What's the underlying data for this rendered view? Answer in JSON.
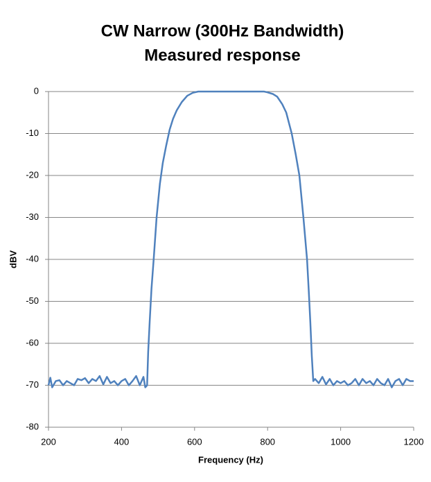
{
  "chart_data": {
    "type": "line",
    "title": "CW Narrow (300Hz Bandwidth)",
    "subtitle": "Measured response",
    "x_label": "Frequency (Hz)",
    "y_label": "dBV",
    "xlim": [
      200,
      1200
    ],
    "xticks": [
      200,
      400,
      600,
      800,
      1000,
      1200
    ],
    "ylim": [
      -80,
      0
    ],
    "yticks": [
      -80,
      -70,
      -60,
      -50,
      -40,
      -30,
      -20,
      -10,
      0
    ],
    "grid": true,
    "x": [
      200,
      205,
      210,
      220,
      230,
      240,
      250,
      260,
      270,
      280,
      290,
      300,
      310,
      320,
      330,
      340,
      350,
      360,
      370,
      380,
      390,
      400,
      410,
      420,
      430,
      440,
      450,
      460,
      465,
      470,
      473,
      477,
      482,
      488,
      496,
      505,
      513,
      522,
      532,
      541,
      551,
      565,
      580,
      595,
      610,
      700,
      790,
      800,
      815,
      826,
      840,
      851,
      860,
      866,
      877,
      887,
      898,
      908,
      913,
      917,
      921,
      925,
      930,
      940,
      950,
      960,
      970,
      980,
      990,
      1000,
      1010,
      1020,
      1030,
      1040,
      1050,
      1060,
      1070,
      1080,
      1090,
      1100,
      1110,
      1120,
      1130,
      1140,
      1150,
      1160,
      1170,
      1180,
      1190,
      1200
    ],
    "series": [
      {
        "name": "Measured response",
        "color": "#4f81bd",
        "values": [
          -70,
          -68.2,
          -70.5,
          -69,
          -68.8,
          -70,
          -69,
          -69.5,
          -70,
          -68.5,
          -68.8,
          -68.3,
          -69.5,
          -68.5,
          -69,
          -67.8,
          -69.8,
          -68,
          -69.5,
          -69,
          -70,
          -69,
          -68.5,
          -70,
          -69,
          -67.8,
          -70,
          -68,
          -70.5,
          -70,
          -62,
          -55,
          -47,
          -40,
          -30,
          -22,
          -17,
          -13,
          -9,
          -6.5,
          -4.5,
          -2.5,
          -1,
          -0.3,
          0,
          0,
          0,
          -0.2,
          -0.6,
          -1.2,
          -3,
          -5,
          -8,
          -10,
          -15,
          -20,
          -30,
          -40,
          -48,
          -55,
          -63,
          -69,
          -68.5,
          -69.5,
          -68,
          -69.8,
          -68.5,
          -70,
          -69,
          -69.5,
          -69,
          -70,
          -69.5,
          -68.5,
          -70,
          -68.5,
          -69.5,
          -69,
          -70,
          -68.5,
          -69.5,
          -70,
          -68.5,
          -70.5,
          -69,
          -68.5,
          -70,
          -68.5,
          -69,
          -69
        ]
      }
    ]
  }
}
